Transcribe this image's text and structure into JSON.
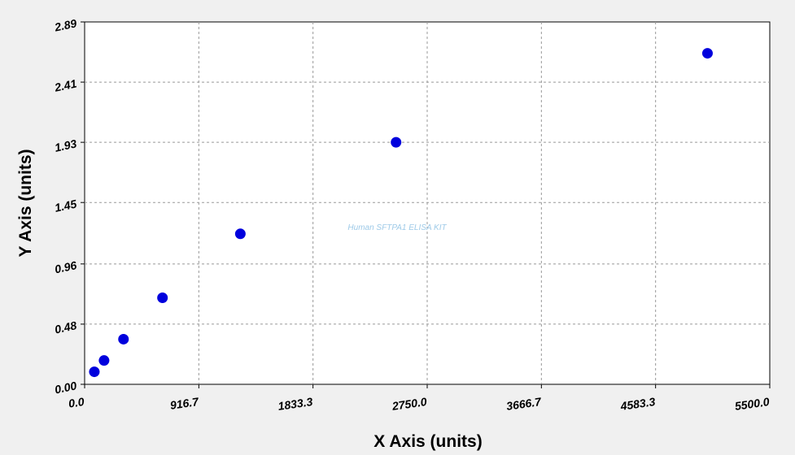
{
  "chart_data": {
    "type": "scatter",
    "title": "",
    "xlabel": "X Axis (units)",
    "ylabel": "Y Axis (units)",
    "xlim": [
      0.0,
      5500.0
    ],
    "ylim": [
      0.0,
      2.89
    ],
    "x_ticks": [
      "0.0",
      "916.7",
      "1833.3",
      "2750.0",
      "3666.7",
      "4583.3",
      "5500.0"
    ],
    "x_tick_values": [
      0.0,
      916.7,
      1833.3,
      2750.0,
      3666.7,
      4583.3,
      5500.0
    ],
    "y_ticks": [
      "0.00",
      "0.48",
      "0.96",
      "1.45",
      "1.93",
      "2.41",
      "2.89"
    ],
    "y_tick_values": [
      0.0,
      0.48,
      0.96,
      1.45,
      1.93,
      2.41,
      2.89
    ],
    "grid": true,
    "watermark": "Human SFTPA1 ELISA KIT",
    "series": [
      {
        "color": "#0000dd",
        "x": [
          78,
          156,
          312,
          625,
          1250,
          2500,
          5000
        ],
        "y": [
          0.1,
          0.19,
          0.36,
          0.69,
          1.2,
          1.93,
          2.64
        ]
      }
    ]
  }
}
